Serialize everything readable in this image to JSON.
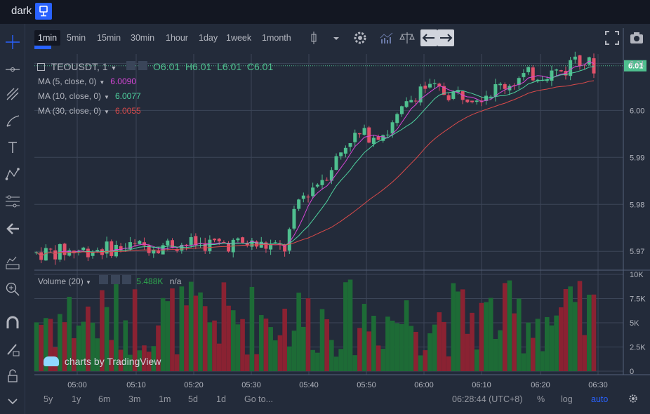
{
  "topbar": {
    "theme_label": "dark",
    "theme_icon": "lamp-icon"
  },
  "timeframes": [
    "1min",
    "5min",
    "15min",
    "30min",
    "1hour",
    "1day",
    "1week",
    "1month"
  ],
  "active_timeframe": "1min",
  "toolbar_icons": [
    "candles-icon",
    "dropdown-arrow-icon",
    "gear-icon",
    "compare-bars-icon",
    "scales-icon",
    "undo-icon",
    "redo-icon",
    "fullscreen-icon",
    "camera-icon"
  ],
  "left_tools": [
    "crosshair-icon",
    "trend-line-icon",
    "fib-icon",
    "brush-icon",
    "text-icon",
    "pattern-icon",
    "measure-icon",
    "back-arrow-icon",
    "ruler-icon",
    "zoom-in-icon",
    "magnet-icon",
    "lock-pencil-icon",
    "lock-icon",
    "chevron-down-icon"
  ],
  "symbol": {
    "name": "TEOUSDT, 1",
    "ohlc": "O6.01  H6.01  L6.01  C6.01"
  },
  "indicators": [
    {
      "label": "MA (5, close, 0)",
      "value": "6.0090",
      "color": "#d846d8"
    },
    {
      "label": "MA (10, close, 0)",
      "value": "6.0077",
      "color": "#4fd29f"
    },
    {
      "label": "MA (30, close, 0)",
      "value": "6.0055",
      "color": "#d94a4a"
    }
  ],
  "volume_legend": {
    "label": "Volume (20)",
    "value": "5.488K",
    "extra": "n/a"
  },
  "watermark": "charts by TradingView",
  "chart_data": {
    "type": "candlestick",
    "price_axis": [
      "6.01",
      "6.00",
      "5.99",
      "5.98",
      "5.97"
    ],
    "price_ticks": [
      6.01,
      6.0,
      5.99,
      5.98,
      5.97
    ],
    "last_price": "6.01",
    "volume_axis": [
      "10K",
      "7.5K",
      "5K",
      "2.5K",
      "0"
    ],
    "volume_ticks": [
      10000,
      7500,
      5000,
      2500,
      0
    ],
    "time_axis": [
      "05:00",
      "05:10",
      "05:20",
      "05:30",
      "05:40",
      "05:50",
      "06:00",
      "06:10",
      "06:20",
      "06:30"
    ],
    "ylim": [
      5.966,
      6.012
    ],
    "vol_max": 10000
  },
  "bottombar": {
    "ranges": [
      "5y",
      "1y",
      "6m",
      "3m",
      "1m",
      "5d",
      "1d"
    ],
    "goto": "Go to...",
    "clock": "06:28:44 (UTC+8)",
    "percent": "%",
    "log": "log",
    "auto": "auto",
    "settings_icon": "gear-icon"
  }
}
